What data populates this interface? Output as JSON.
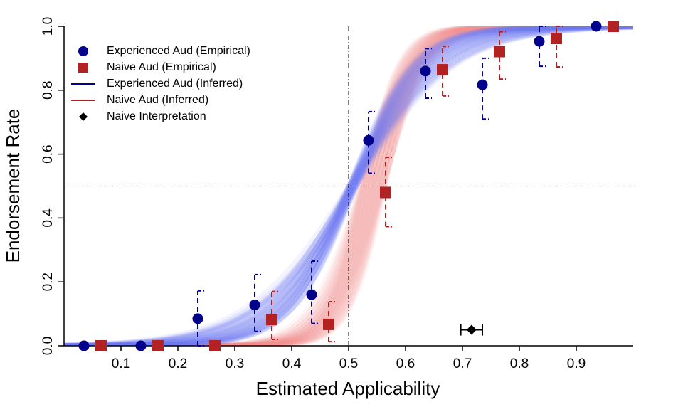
{
  "chart_data": {
    "type": "scatter",
    "title": "",
    "xlabel": "Estimated Applicability",
    "ylabel": "Endorsement Rate",
    "xlim": [
      0.0,
      1.0
    ],
    "ylim": [
      0.0,
      1.0
    ],
    "x_ticks": [
      "0.1",
      "0.2",
      "0.3",
      "0.4",
      "0.5",
      "0.6",
      "0.7",
      "0.8",
      "0.9"
    ],
    "y_ticks": [
      "0.0",
      "0.2",
      "0.4",
      "0.6",
      "0.8",
      "1.0"
    ],
    "grid": false,
    "legend_position": "top-left",
    "reference_lines": {
      "x": 0.5,
      "y": 0.5,
      "style": "dot-dash"
    },
    "series": [
      {
        "name": "Experienced Aud (Empirical)",
        "kind": "points",
        "marker": "circle",
        "color": "#00008b",
        "x": [
          0.035,
          0.135,
          0.235,
          0.335,
          0.435,
          0.535,
          0.635,
          0.735,
          0.835,
          0.935
        ],
        "y": [
          0.0,
          0.0,
          0.085,
          0.128,
          0.16,
          0.643,
          0.86,
          0.817,
          0.953,
          1.0
        ],
        "y_lower": [
          null,
          null,
          0.0,
          0.045,
          0.07,
          0.54,
          0.775,
          0.71,
          0.875,
          null
        ],
        "y_upper": [
          null,
          null,
          0.172,
          0.223,
          0.265,
          0.733,
          0.93,
          0.9,
          1.0,
          null
        ]
      },
      {
        "name": "Naive Aud (Empirical)",
        "kind": "points",
        "marker": "square",
        "color": "#b22222",
        "x": [
          0.065,
          0.165,
          0.265,
          0.365,
          0.465,
          0.565,
          0.665,
          0.765,
          0.865,
          0.965
        ],
        "y": [
          0.0,
          0.0,
          0.0,
          0.082,
          0.067,
          0.48,
          0.864,
          0.921,
          0.962,
          1.0
        ],
        "y_lower": [
          null,
          null,
          null,
          0.02,
          0.013,
          0.373,
          0.782,
          0.835,
          0.873,
          null
        ],
        "y_upper": [
          null,
          null,
          null,
          0.17,
          0.138,
          0.59,
          0.937,
          0.983,
          1.0,
          null
        ]
      },
      {
        "name": "Experienced Aud (Inferred)",
        "kind": "curve-band",
        "color": "#00008b",
        "band_color": "#6f7cf0",
        "midpoint": 0.507,
        "slope_range": [
          11,
          19
        ]
      },
      {
        "name": "Naive Aud (Inferred)",
        "kind": "curve-band",
        "color": "#b22222",
        "band_color": "#f48b8b",
        "midpoint_range": [
          0.52,
          0.565
        ],
        "slope_range": [
          22,
          34
        ]
      },
      {
        "name": "Naive Interpretation",
        "kind": "point-with-hbar",
        "marker": "diamond",
        "color": "#000000",
        "x": 0.716,
        "y": 0.05,
        "x_lower": 0.697,
        "x_upper": 0.735
      }
    ]
  }
}
